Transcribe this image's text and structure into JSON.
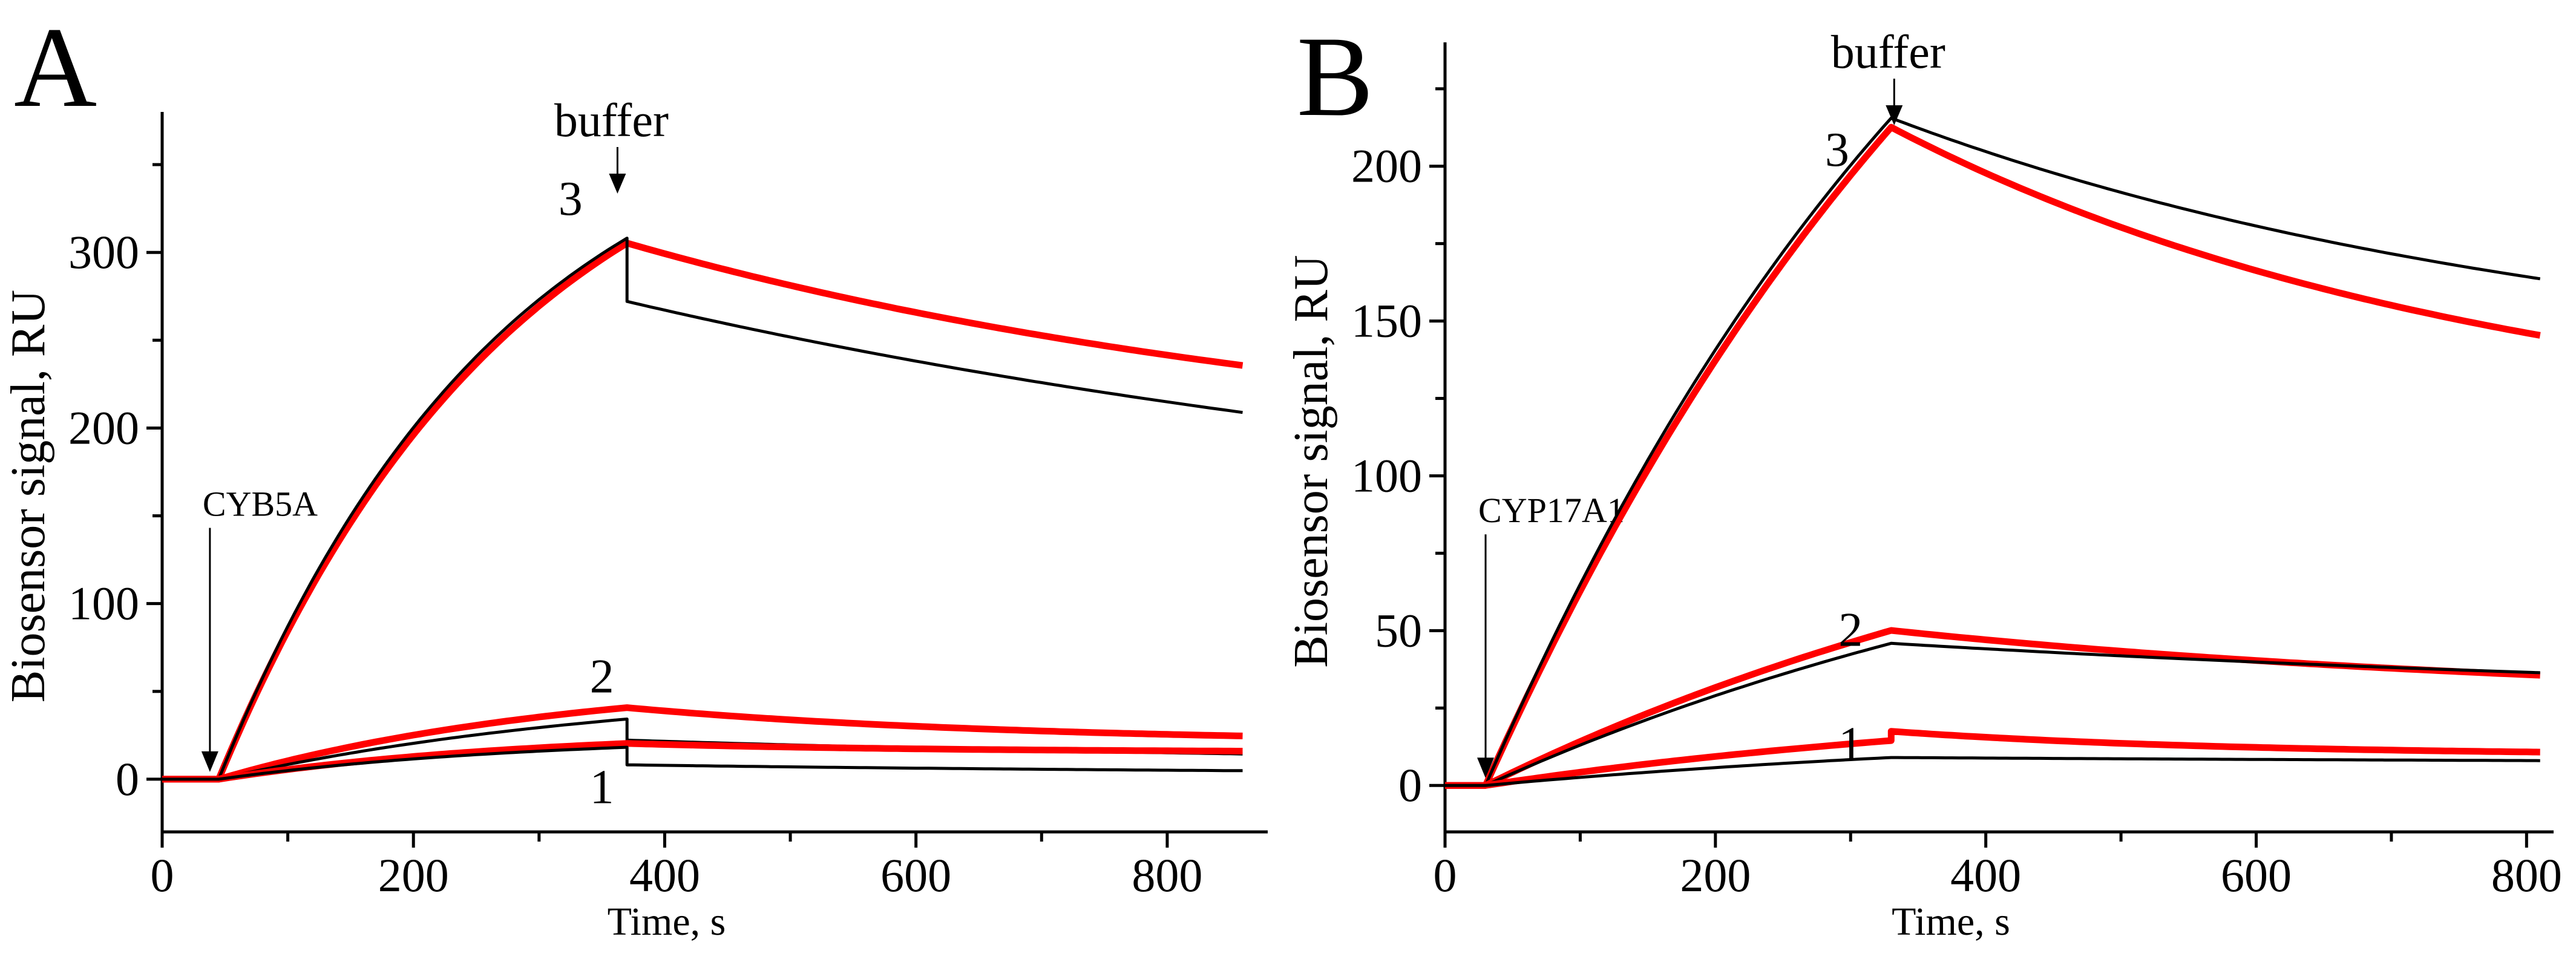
{
  "chart_data": [
    {
      "type": "line",
      "panel_label": "A",
      "xlabel": "Time, s",
      "ylabel": "Biosensor signal, RU",
      "xlim": [
        0,
        880
      ],
      "ylim": [
        -30,
        380
      ],
      "xticks": [
        0,
        200,
        400,
        600,
        800
      ],
      "yticks": [
        0,
        100,
        200,
        300
      ],
      "tick_labels_x": [
        "0",
        "200",
        "400",
        "600",
        "800"
      ],
      "tick_labels_y": [
        "0",
        "100",
        "200",
        "300"
      ],
      "annotations": {
        "injection_label": "CYB5A",
        "injection_x": 38,
        "injection_y_text": 150,
        "buffer_label": "buffer",
        "buffer_x": 360
      },
      "curve_labels": [
        "1",
        "2",
        "3"
      ],
      "inject_start": 45,
      "switch": 370,
      "end": 860,
      "series": [
        {
          "name": "3",
          "color": "#ff0000",
          "kind": "experimental",
          "plateau": 410,
          "k_on": 0.0042,
          "drop": 0,
          "k_off": 0.001,
          "tail": 0.58,
          "label_x": 325,
          "label_y": 330
        },
        {
          "name": "3",
          "color": "#000000",
          "kind": "fit",
          "plateau": 405,
          "k_on": 0.0044,
          "drop": 36,
          "k_off": 0.0007,
          "tail": 0.45,
          "label_x": null,
          "label_y": null
        },
        {
          "name": "2",
          "color": "#ff0000",
          "kind": "experimental",
          "plateau": 60,
          "k_on": 0.0035,
          "drop": 0,
          "k_off": 0.002,
          "tail": 0.5,
          "label_x": 350,
          "label_y": 58
        },
        {
          "name": "2",
          "color": "#000000",
          "kind": "fit",
          "plateau": 55,
          "k_on": 0.003,
          "drop": 12,
          "k_off": 0.001,
          "tail": 0.35,
          "label_x": null,
          "label_y": null
        },
        {
          "name": "1",
          "color": "#ff0000",
          "kind": "experimental",
          "plateau": 28,
          "k_on": 0.004,
          "drop": 0,
          "k_off": 0.0025,
          "tail": 0.75,
          "label_x": 350,
          "label_y": -5
        },
        {
          "name": "1",
          "color": "#000000",
          "kind": "fit",
          "plateau": 25,
          "k_on": 0.004,
          "drop": 10,
          "k_off": 0.001,
          "tail": 0.25,
          "label_x": null,
          "label_y": null
        }
      ]
    },
    {
      "type": "line",
      "panel_label": "B",
      "xlabel": "Time, s",
      "ylabel": "Biosensor signal, RU",
      "xlim": [
        0,
        820
      ],
      "ylim": [
        -15,
        240
      ],
      "xticks": [
        0,
        200,
        400,
        600,
        800
      ],
      "yticks": [
        0,
        50,
        100,
        150,
        200
      ],
      "tick_labels_x": [
        "0",
        "200",
        "400",
        "600",
        "800"
      ],
      "tick_labels_y": [
        "0",
        "50",
        "100",
        "150",
        "200"
      ],
      "annotations": {
        "injection_label": "CYP17A1",
        "injection_x": 30,
        "injection_y_text": 85,
        "buffer_label": "buffer",
        "buffer_x": 330
      },
      "curve_labels": [
        "1",
        "2",
        "3"
      ],
      "inject_start": 30,
      "switch": 330,
      "end": 810,
      "series": [
        {
          "name": "3",
          "color": "#ff0000",
          "kind": "experimental",
          "plateau": 440,
          "k_on": 0.0022,
          "drop": 0,
          "k_off": 0.0014,
          "tail": 0.52,
          "label_x": 290,
          "label_y": 205
        },
        {
          "name": "3",
          "color": "#000000",
          "kind": "fit",
          "plateau": 420,
          "k_on": 0.0024,
          "drop": 0,
          "k_off": 0.0012,
          "tail": 0.6,
          "label_x": null,
          "label_y": null
        },
        {
          "name": "2",
          "color": "#ff0000",
          "kind": "experimental",
          "plateau": 120,
          "k_on": 0.0018,
          "drop": 0,
          "k_off": 0.0012,
          "tail": 0.52,
          "label_x": 300,
          "label_y": 50
        },
        {
          "name": "2",
          "color": "#000000",
          "kind": "fit",
          "plateau": 110,
          "k_on": 0.0018,
          "drop": 0,
          "k_off": 0.0008,
          "tail": 0.55,
          "label_x": null,
          "label_y": null
        },
        {
          "name": "1",
          "color": "#ff0000",
          "kind": "experimental",
          "plateau": 30,
          "k_on": 0.0022,
          "drop": -3,
          "k_off": 0.0025,
          "tail": 0.55,
          "label_x": 300,
          "label_y": 13
        },
        {
          "name": "1",
          "color": "#000000",
          "kind": "fit",
          "plateau": 20,
          "k_on": 0.002,
          "drop": 0,
          "k_off": 0.0006,
          "tail": 0.7,
          "label_x": null,
          "label_y": null
        }
      ]
    }
  ]
}
